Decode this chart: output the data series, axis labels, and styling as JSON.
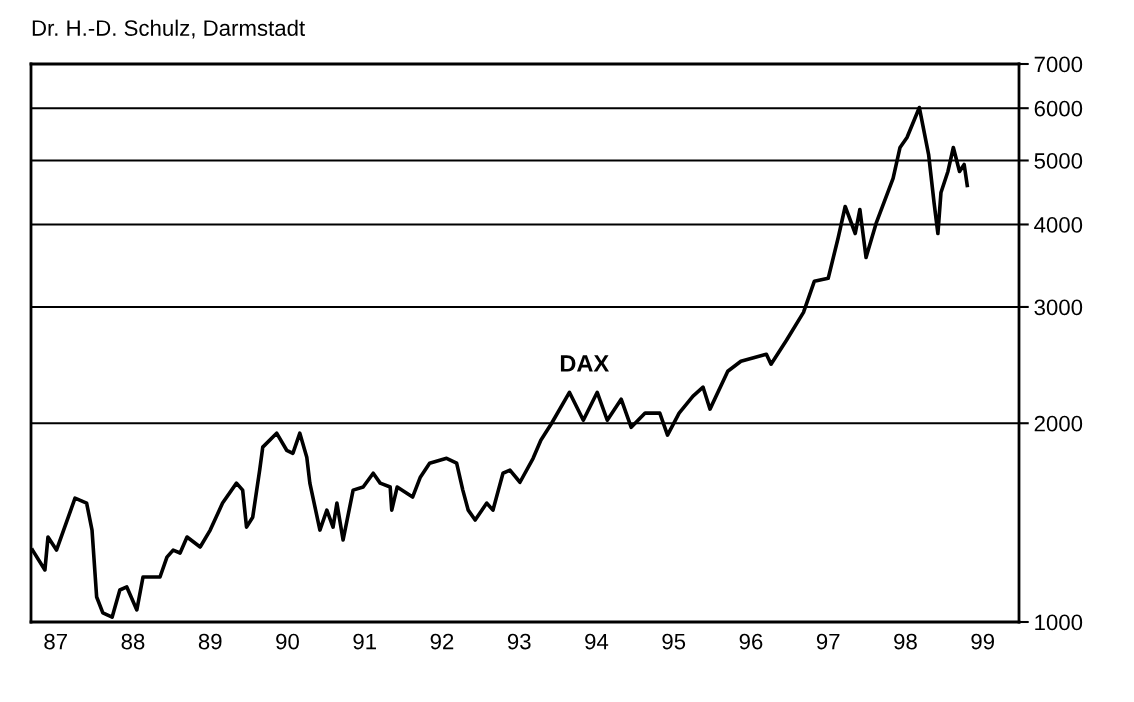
{
  "chart_data": {
    "type": "line",
    "annotations": [
      "Dr. H.-D. Schulz, Darmstadt"
    ],
    "x": [
      87.2,
      87.36,
      87.4,
      87.51,
      87.75,
      87.9,
      87.97,
      88.03,
      88.11,
      88.23,
      88.33,
      88.42,
      88.55,
      88.63,
      88.85,
      88.94,
      89.02,
      89.11,
      89.2,
      89.37,
      89.5,
      89.66,
      89.84,
      89.92,
      89.97,
      90.05,
      90.14,
      90.18,
      90.36,
      90.49,
      90.57,
      90.66,
      90.75,
      90.79,
      90.92,
      91.01,
      91.09,
      91.14,
      91.22,
      91.35,
      91.48,
      91.61,
      91.7,
      91.83,
      91.85,
      91.92,
      92.12,
      92.22,
      92.34,
      92.56,
      92.69,
      92.77,
      92.84,
      92.93,
      93.08,
      93.16,
      93.29,
      93.38,
      93.51,
      93.68,
      93.78,
      93.92,
      94.15,
      94.33,
      94.51,
      94.64,
      94.82,
      94.95,
      95.13,
      95.32,
      95.42,
      95.57,
      95.75,
      95.88,
      95.97,
      96.2,
      96.37,
      96.7,
      96.76,
      96.96,
      97.18,
      97.32,
      97.5,
      97.63,
      97.72,
      97.85,
      97.91,
      97.99,
      98.12,
      98.34,
      98.43,
      98.52,
      98.68,
      98.8,
      98.87,
      98.92,
      98.96,
      99.05,
      99.12,
      99.2,
      99.26,
      99.3
    ],
    "series": [
      {
        "name": "DAX",
        "color": "#000000",
        "values": [
          1285,
          1199,
          1345,
          1285,
          1540,
          1514,
          1378,
          1091,
          1032,
          1017,
          1118,
          1130,
          1043,
          1170,
          1170,
          1254,
          1285,
          1272,
          1345,
          1299,
          1378,
          1514,
          1623,
          1584,
          1392,
          1441,
          1698,
          1840,
          1932,
          1820,
          1801,
          1932,
          1777,
          1623,
          1378,
          1477,
          1392,
          1514,
          1331,
          1584,
          1601,
          1680,
          1623,
          1601,
          1477,
          1601,
          1546,
          1657,
          1740,
          1770,
          1740,
          1584,
          1477,
          1427,
          1514,
          1477,
          1680,
          1698,
          1628,
          1770,
          1885,
          2000,
          2228,
          2021,
          2228,
          2021,
          2175,
          1972,
          2072,
          2072,
          1919,
          2072,
          2198,
          2268,
          2101,
          2398,
          2483,
          2544,
          2457,
          2671,
          2944,
          3281,
          3315,
          3823,
          4259,
          3876,
          4215,
          3566,
          4014,
          4696,
          5232,
          5417,
          6014,
          5105,
          4319,
          3876,
          4472,
          4812,
          5232,
          4812,
          4931,
          4583
        ]
      }
    ],
    "xlim": [
      87.18,
      99.97
    ],
    "xticks": [
      {
        "value": 87.5,
        "label": "87"
      },
      {
        "value": 88.5,
        "label": "88"
      },
      {
        "value": 89.5,
        "label": "89"
      },
      {
        "value": 90.5,
        "label": "90"
      },
      {
        "value": 91.5,
        "label": "91"
      },
      {
        "value": 92.5,
        "label": "92"
      },
      {
        "value": 93.5,
        "label": "93"
      },
      {
        "value": 94.5,
        "label": "94"
      },
      {
        "value": 95.5,
        "label": "95"
      },
      {
        "value": 96.5,
        "label": "96"
      },
      {
        "value": 97.5,
        "label": "97"
      },
      {
        "value": 98.5,
        "label": "98"
      },
      {
        "value": 99.5,
        "label": "99"
      }
    ],
    "ylim": [
      1000,
      7000
    ],
    "yticks": [
      1000,
      2000,
      3000,
      4000,
      5000,
      6000,
      7000
    ],
    "log": true,
    "grid": "y",
    "legend": false,
    "marker": "none",
    "line_style": "solid"
  }
}
